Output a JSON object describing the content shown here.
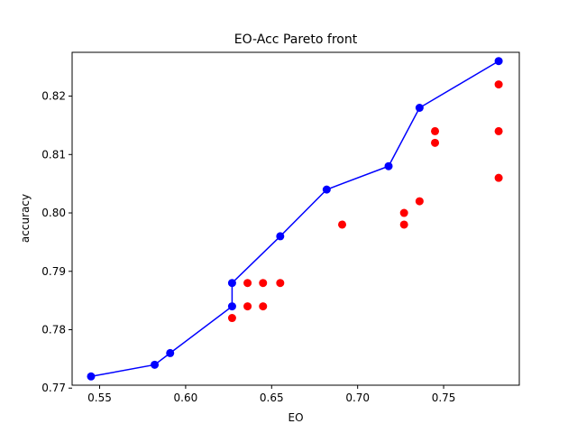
{
  "chart_data": {
    "type": "scatter",
    "title": "EO-Acc Pareto front",
    "xlabel": "EO",
    "ylabel": "accuracy",
    "xlim": [
      0.534,
      0.794
    ],
    "ylim": [
      0.7705,
      0.8275
    ],
    "xticks": [
      0.55,
      0.6,
      0.65,
      0.7,
      0.75
    ],
    "xtick_labels": [
      "0.55",
      "0.60",
      "0.65",
      "0.70",
      "0.75"
    ],
    "yticks": [
      0.77,
      0.78,
      0.79,
      0.8,
      0.81,
      0.82
    ],
    "ytick_labels": [
      "0.77",
      "0.78",
      "0.79",
      "0.80",
      "0.81",
      "0.82"
    ],
    "grid": false,
    "series": [
      {
        "kind": "scatter",
        "color": "#ff0000",
        "points": [
          [
            0.627,
            0.782
          ],
          [
            0.636,
            0.784
          ],
          [
            0.645,
            0.784
          ],
          [
            0.636,
            0.788
          ],
          [
            0.645,
            0.788
          ],
          [
            0.655,
            0.788
          ],
          [
            0.691,
            0.798
          ],
          [
            0.727,
            0.798
          ],
          [
            0.727,
            0.8
          ],
          [
            0.736,
            0.802
          ],
          [
            0.745,
            0.812
          ],
          [
            0.745,
            0.814
          ],
          [
            0.782,
            0.806
          ],
          [
            0.782,
            0.814
          ],
          [
            0.782,
            0.822
          ]
        ]
      },
      {
        "kind": "line+markers",
        "color": "#0000ff",
        "points": [
          [
            0.545,
            0.772
          ],
          [
            0.582,
            0.774
          ],
          [
            0.591,
            0.776
          ],
          [
            0.627,
            0.784
          ],
          [
            0.627,
            0.788
          ],
          [
            0.655,
            0.796
          ],
          [
            0.682,
            0.804
          ],
          [
            0.718,
            0.808
          ],
          [
            0.736,
            0.818
          ],
          [
            0.782,
            0.826
          ]
        ]
      }
    ]
  }
}
